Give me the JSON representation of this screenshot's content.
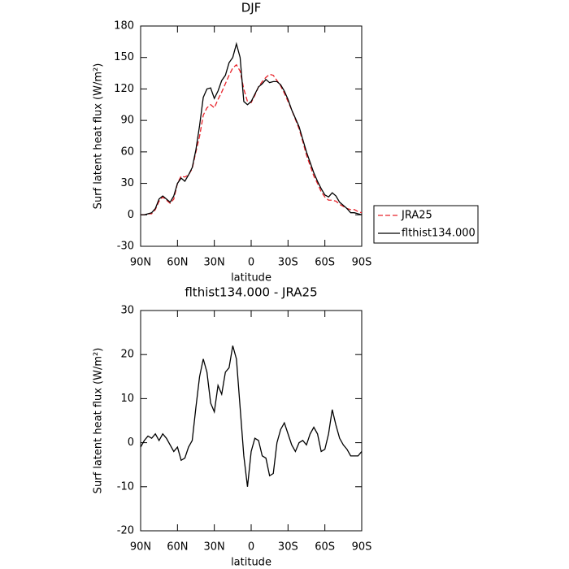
{
  "chart_data": [
    {
      "type": "line",
      "title": "DJF",
      "xlabel": "latitude",
      "ylabel": "Surf latent heat flux (W/m²)",
      "x": [
        90,
        87,
        84,
        81,
        78,
        75,
        72,
        69,
        66,
        63,
        60,
        57,
        54,
        51,
        48,
        45,
        42,
        39,
        36,
        33,
        30,
        27,
        24,
        21,
        18,
        15,
        12,
        9,
        6,
        3,
        0,
        -3,
        -6,
        -9,
        -12,
        -15,
        -18,
        -21,
        -24,
        -27,
        -30,
        -33,
        -36,
        -39,
        -42,
        -45,
        -48,
        -51,
        -54,
        -57,
        -60,
        -63,
        -66,
        -69,
        -72,
        -75,
        -78,
        -81,
        -84,
        -87,
        -90
      ],
      "series": [
        {
          "name": "JRA25",
          "color": "#e8232a",
          "dash": true,
          "values": [
            0,
            0,
            1,
            1,
            5,
            13,
            17,
            14,
            11,
            15,
            30,
            37,
            36,
            38,
            44,
            60,
            75,
            95,
            102,
            105,
            102,
            110,
            117,
            125,
            133,
            140,
            143,
            137,
            120,
            108,
            107,
            114,
            122,
            127,
            131,
            134,
            133,
            128,
            123,
            116,
            108,
            100,
            91,
            82,
            70,
            57,
            47,
            37,
            30,
            22,
            17,
            14,
            14,
            13,
            10,
            8,
            6,
            5,
            5,
            3,
            2
          ]
        },
        {
          "name": "flthist134.000",
          "color": "#000000",
          "dash": false,
          "values": [
            0,
            0,
            1,
            2,
            6,
            15,
            18,
            15,
            12,
            18,
            30,
            35,
            32,
            38,
            45,
            62,
            85,
            112,
            120,
            121,
            111,
            118,
            128,
            133,
            145,
            150,
            163,
            150,
            108,
            105,
            108,
            115,
            122,
            125,
            129,
            126,
            127,
            127,
            124,
            118,
            110,
            100,
            92,
            84,
            72,
            60,
            50,
            40,
            32,
            25,
            19,
            17,
            21,
            18,
            12,
            9,
            6,
            2,
            2,
            1,
            0
          ]
        }
      ],
      "xlim": [
        90,
        -90
      ],
      "xticks": [
        {
          "value": 90,
          "label": "90N"
        },
        {
          "value": 60,
          "label": "60N"
        },
        {
          "value": 30,
          "label": "30N"
        },
        0,
        {
          "value": -30,
          "label": "30S"
        },
        {
          "value": -60,
          "label": "60S"
        },
        {
          "value": -90,
          "label": "90S"
        }
      ],
      "ylim": [
        -30,
        180
      ],
      "yticks": [
        -30,
        0,
        30,
        60,
        90,
        120,
        150,
        180
      ],
      "legend": "right"
    },
    {
      "type": "line",
      "title": "flthist134.000 - JRA25",
      "xlabel": "latitude",
      "ylabel": "Surf latent heat flux (W/m²)",
      "x": [
        90,
        87,
        84,
        81,
        78,
        75,
        72,
        69,
        66,
        63,
        60,
        57,
        54,
        51,
        48,
        45,
        42,
        39,
        36,
        33,
        30,
        27,
        24,
        21,
        18,
        15,
        12,
        9,
        6,
        3,
        0,
        -3,
        -6,
        -9,
        -12,
        -15,
        -18,
        -21,
        -24,
        -27,
        -30,
        -33,
        -36,
        -39,
        -42,
        -45,
        -48,
        -51,
        -54,
        -57,
        -60,
        -63,
        -66,
        -69,
        -72,
        -75,
        -78,
        -81,
        -84,
        -87,
        -90
      ],
      "series": [
        {
          "color": "#000000",
          "dash": false,
          "values": [
            -1,
            0.5,
            1.5,
            1,
            2,
            0.5,
            2,
            1,
            -0.5,
            -2,
            -1,
            -4,
            -3.5,
            -1,
            0.5,
            8,
            15,
            19,
            16,
            9,
            7,
            13,
            11,
            16,
            17,
            22,
            19,
            8,
            -3,
            -10,
            -2,
            1,
            0.5,
            -3,
            -3.5,
            -7.5,
            -7,
            0,
            3,
            4.5,
            2,
            -0.5,
            -2,
            0,
            0.5,
            -0.5,
            2,
            3.5,
            2,
            -2,
            -1.5,
            2,
            7.5,
            4,
            1,
            -0.5,
            -1.5,
            -3,
            -3,
            -3,
            -2
          ]
        }
      ],
      "xlim": [
        90,
        -90
      ],
      "xticks": [
        {
          "value": 90,
          "label": "90N"
        },
        {
          "value": 60,
          "label": "60N"
        },
        {
          "value": 30,
          "label": "30N"
        },
        0,
        {
          "value": -30,
          "label": "30S"
        },
        {
          "value": -60,
          "label": "60S"
        },
        {
          "value": -90,
          "label": "90S"
        }
      ],
      "ylim": [
        -20,
        30
      ],
      "yticks": [
        -20,
        -10,
        0,
        10,
        20,
        30
      ]
    }
  ]
}
